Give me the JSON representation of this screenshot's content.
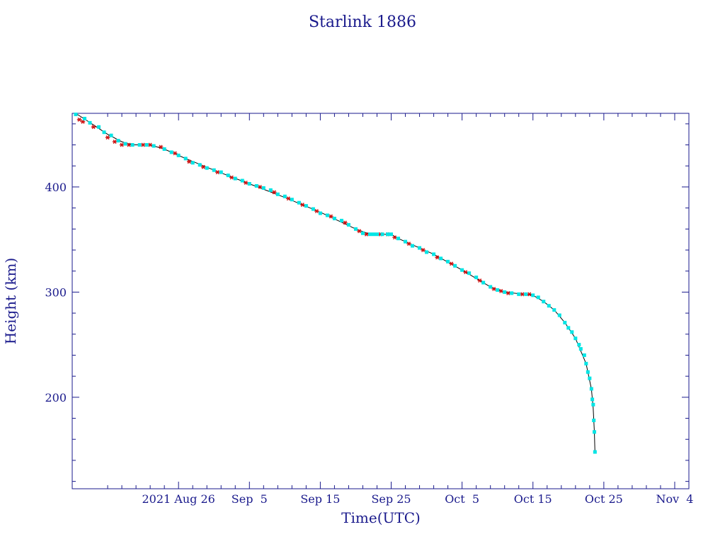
{
  "chart_data": {
    "type": "scatter",
    "title": "Starlink 1886",
    "xlabel": "Time(UTC)",
    "ylabel": "Height (km)",
    "x_unit": "days",
    "xlim": [
      "2021-08-11",
      "2021-11-06"
    ],
    "ylim": [
      113,
      470
    ],
    "x_ticks": [
      {
        "x": "2021-08-26",
        "label": "2021 Aug 26"
      },
      {
        "x": "2021-09-05",
        "label": "Sep  5"
      },
      {
        "x": "2021-09-15",
        "label": "Sep 15"
      },
      {
        "x": "2021-09-25",
        "label": "Sep 25"
      },
      {
        "x": "2021-10-05",
        "label": "Oct  5"
      },
      {
        "x": "2021-10-15",
        "label": "Oct 15"
      },
      {
        "x": "2021-10-25",
        "label": "Oct 25"
      },
      {
        "x": "2021-11-04",
        "label": "Nov  4"
      }
    ],
    "y_ticks": [
      200,
      300,
      400
    ],
    "grid": false,
    "colors": {
      "axis": "#1a1a8c",
      "fit_line": "#000000",
      "series_a": "#cc1111",
      "series_b": "#00e5e5"
    },
    "series": [
      {
        "marker": "asterisk",
        "color": "#cc1111",
        "points": [
          [
            "2021-08-12T00:00",
            464
          ],
          [
            "2021-08-12T12:00",
            462
          ],
          [
            "2021-08-14T00:00",
            457
          ],
          [
            "2021-08-16T00:00",
            447
          ],
          [
            "2021-08-17T00:00",
            443
          ],
          [
            "2021-08-18T00:00",
            440
          ],
          [
            "2021-08-19T00:00",
            440
          ],
          [
            "2021-08-21T00:00",
            440
          ],
          [
            "2021-08-22T00:00",
            440
          ],
          [
            "2021-08-23T12:00",
            438
          ],
          [
            "2021-08-25T12:00",
            432
          ],
          [
            "2021-08-27T12:00",
            424
          ],
          [
            "2021-08-29T12:00",
            419
          ],
          [
            "2021-08-31T12:00",
            414
          ],
          [
            "2021-09-02T12:00",
            409
          ],
          [
            "2021-09-04T12:00",
            404
          ],
          [
            "2021-09-06T12:00",
            400
          ],
          [
            "2021-09-08T12:00",
            395
          ],
          [
            "2021-09-10T12:00",
            389
          ],
          [
            "2021-09-12T12:00",
            383
          ],
          [
            "2021-09-14T12:00",
            377
          ],
          [
            "2021-09-16T12:00",
            372
          ],
          [
            "2021-09-18T12:00",
            366
          ],
          [
            "2021-09-20T12:00",
            358
          ],
          [
            "2021-09-21T12:00",
            355
          ],
          [
            "2021-09-23T12:00",
            355
          ],
          [
            "2021-09-24T12:00",
            355
          ],
          [
            "2021-09-25T12:00",
            352
          ],
          [
            "2021-09-27T12:00",
            346
          ],
          [
            "2021-09-29T12:00",
            340
          ],
          [
            "2021-10-01T12:00",
            333
          ],
          [
            "2021-10-03T12:00",
            327
          ],
          [
            "2021-10-05T12:00",
            319
          ],
          [
            "2021-10-07T12:00",
            311
          ],
          [
            "2021-10-09T12:00",
            303
          ],
          [
            "2021-10-10T12:00",
            301
          ],
          [
            "2021-10-11T12:00",
            299
          ],
          [
            "2021-10-13T12:00",
            298
          ],
          [
            "2021-10-14T12:00",
            298
          ]
        ]
      },
      {
        "marker": "square",
        "color": "#00e5e5",
        "points": [
          [
            "2021-08-11T12:00",
            469
          ],
          [
            "2021-08-12T18:00",
            465
          ],
          [
            "2021-08-13T12:00",
            461
          ],
          [
            "2021-08-14T18:00",
            457
          ],
          [
            "2021-08-15T12:00",
            452
          ],
          [
            "2021-08-16T12:00",
            449
          ],
          [
            "2021-08-17T12:00",
            444
          ],
          [
            "2021-08-18T12:00",
            441
          ],
          [
            "2021-08-19T12:00",
            440
          ],
          [
            "2021-08-20T12:00",
            440
          ],
          [
            "2021-08-21T12:00",
            440
          ],
          [
            "2021-08-22T12:00",
            439
          ],
          [
            "2021-08-24T00:00",
            436
          ],
          [
            "2021-08-25T00:00",
            433
          ],
          [
            "2021-08-26T00:00",
            430
          ],
          [
            "2021-08-27T00:00",
            427
          ],
          [
            "2021-08-28T00:00",
            423
          ],
          [
            "2021-08-29T00:00",
            421
          ],
          [
            "2021-08-30T00:00",
            418
          ],
          [
            "2021-08-31T00:00",
            416
          ],
          [
            "2021-09-01T00:00",
            414
          ],
          [
            "2021-09-02T00:00",
            411
          ],
          [
            "2021-09-03T00:00",
            408
          ],
          [
            "2021-09-04T00:00",
            406
          ],
          [
            "2021-09-05T00:00",
            403
          ],
          [
            "2021-09-06T00:00",
            401
          ],
          [
            "2021-09-07T00:00",
            399
          ],
          [
            "2021-09-08T00:00",
            397
          ],
          [
            "2021-09-09T00:00",
            393
          ],
          [
            "2021-09-10T00:00",
            391
          ],
          [
            "2021-09-11T00:00",
            388
          ],
          [
            "2021-09-12T00:00",
            385
          ],
          [
            "2021-09-13T00:00",
            382
          ],
          [
            "2021-09-14T00:00",
            379
          ],
          [
            "2021-09-15T00:00",
            375
          ],
          [
            "2021-09-16T00:00",
            373
          ],
          [
            "2021-09-17T00:00",
            370
          ],
          [
            "2021-09-18T00:00",
            368
          ],
          [
            "2021-09-19T00:00",
            364
          ],
          [
            "2021-09-20T00:00",
            360
          ],
          [
            "2021-09-21T00:00",
            356
          ],
          [
            "2021-09-22T00:00",
            355
          ],
          [
            "2021-09-22T12:00",
            355
          ],
          [
            "2021-09-23T00:00",
            355
          ],
          [
            "2021-09-23T18:00",
            355
          ],
          [
            "2021-09-24T12:00",
            355
          ],
          [
            "2021-09-25T00:00",
            355
          ],
          [
            "2021-09-26T00:00",
            351
          ],
          [
            "2021-09-27T00:00",
            348
          ],
          [
            "2021-09-28T00:00",
            344
          ],
          [
            "2021-09-29T00:00",
            342
          ],
          [
            "2021-09-30T00:00",
            338
          ],
          [
            "2021-10-01T00:00",
            336
          ],
          [
            "2021-10-02T00:00",
            332
          ],
          [
            "2021-10-03T00:00",
            329
          ],
          [
            "2021-10-04T00:00",
            325
          ],
          [
            "2021-10-05T00:00",
            321
          ],
          [
            "2021-10-06T00:00",
            318
          ],
          [
            "2021-10-07T00:00",
            314
          ],
          [
            "2021-10-08T00:00",
            309
          ],
          [
            "2021-10-09T00:00",
            305
          ],
          [
            "2021-10-10T00:00",
            302
          ],
          [
            "2021-10-11T00:00",
            300
          ],
          [
            "2021-10-12T00:00",
            299
          ],
          [
            "2021-10-13T00:00",
            298
          ],
          [
            "2021-10-14T00:00",
            298
          ],
          [
            "2021-10-15T00:00",
            297
          ],
          [
            "2021-10-15T18:00",
            295
          ],
          [
            "2021-10-16T12:00",
            291
          ],
          [
            "2021-10-17T06:00",
            287
          ],
          [
            "2021-10-18T00:00",
            283
          ],
          [
            "2021-10-18T18:00",
            278
          ],
          [
            "2021-10-19T12:00",
            271
          ],
          [
            "2021-10-20T00:00",
            266
          ],
          [
            "2021-10-20T12:00",
            262
          ],
          [
            "2021-10-21T00:00",
            256
          ],
          [
            "2021-10-21T12:00",
            250
          ],
          [
            "2021-10-21T18:00",
            246
          ],
          [
            "2021-10-22T06:00",
            240
          ],
          [
            "2021-10-22T12:00",
            232
          ],
          [
            "2021-10-22T18:00",
            224
          ],
          [
            "2021-10-23T00:00",
            218
          ],
          [
            "2021-10-23T06:00",
            208
          ],
          [
            "2021-10-23T09:00",
            198
          ],
          [
            "2021-10-23T12:00",
            193
          ],
          [
            "2021-10-23T14:00",
            178
          ],
          [
            "2021-10-23T16:00",
            167
          ],
          [
            "2021-10-23T18:00",
            148
          ]
        ]
      }
    ],
    "fit_curve": [
      [
        "2021-08-11T12:00",
        470
      ],
      [
        "2021-08-14T00:00",
        459
      ],
      [
        "2021-08-16T00:00",
        450
      ],
      [
        "2021-08-18T00:00",
        443
      ],
      [
        "2021-08-19T12:00",
        440
      ],
      [
        "2021-08-22T00:00",
        440
      ],
      [
        "2021-08-24T00:00",
        436
      ],
      [
        "2021-08-27T00:00",
        427
      ],
      [
        "2021-08-31T00:00",
        416
      ],
      [
        "2021-09-05T00:00",
        403
      ],
      [
        "2021-09-10T00:00",
        390
      ],
      [
        "2021-09-15T00:00",
        376
      ],
      [
        "2021-09-20T00:00",
        360
      ],
      [
        "2021-09-22T00:00",
        355
      ],
      [
        "2021-09-25T00:00",
        355
      ],
      [
        "2021-09-26T00:00",
        351
      ],
      [
        "2021-10-01T00:00",
        336
      ],
      [
        "2021-10-05T00:00",
        321
      ],
      [
        "2021-10-09T00:00",
        305
      ],
      [
        "2021-10-11T00:00",
        300
      ],
      [
        "2021-10-15T00:00",
        297
      ],
      [
        "2021-10-16T12:00",
        291
      ],
      [
        "2021-10-18T00:00",
        283
      ],
      [
        "2021-10-19T12:00",
        271
      ],
      [
        "2021-10-21T00:00",
        256
      ],
      [
        "2021-10-22T12:00",
        232
      ],
      [
        "2021-10-23T06:00",
        208
      ],
      [
        "2021-10-23T12:00",
        190
      ],
      [
        "2021-10-23T16:00",
        167
      ],
      [
        "2021-10-23T18:00",
        148
      ]
    ]
  }
}
